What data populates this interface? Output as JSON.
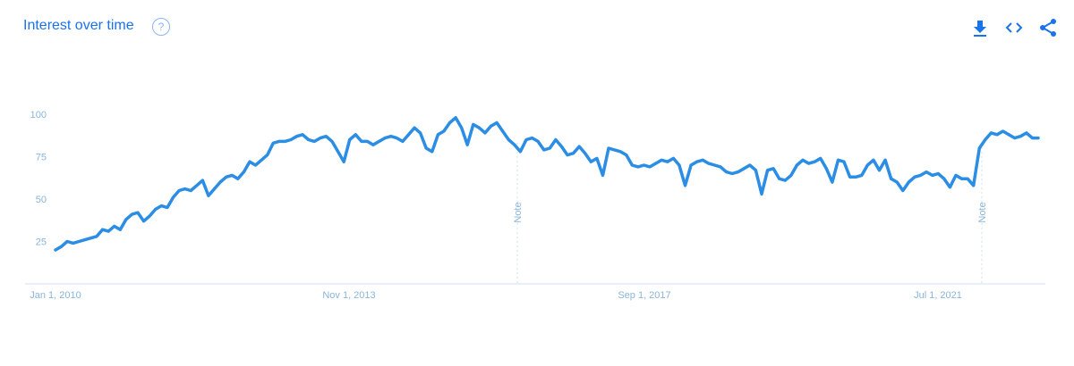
{
  "header": {
    "title": "Interest over time",
    "help_icon": "help-circle-icon",
    "help_glyph": "?",
    "actions": [
      {
        "name": "download-icon",
        "label": "Download"
      },
      {
        "name": "embed-icon",
        "label": "Embed"
      },
      {
        "name": "share-icon",
        "label": "Share"
      }
    ]
  },
  "colors": {
    "line": "#2b8de3",
    "accent": "#1a73e8",
    "axis": "#8ab4d8"
  },
  "chart_data": {
    "type": "line",
    "title": "Interest over time",
    "xlabel": "",
    "ylabel": "",
    "ylim": [
      0,
      100
    ],
    "yticks": [
      25,
      50,
      75,
      100
    ],
    "yticklabels": [
      "25",
      "50",
      "75",
      "100"
    ],
    "xticks": [
      "Jan 1, 2010",
      "Nov 1, 2013",
      "Sep 1, 2017",
      "Jul 1, 2021"
    ],
    "grid": false,
    "annotations": [
      {
        "label": "Note",
        "x": 2015
      },
      {
        "label": "Note",
        "x": 2022
      }
    ],
    "series": [
      {
        "name": "",
        "values": [
          20,
          22,
          25,
          24,
          25,
          26,
          27,
          28,
          32,
          31,
          34,
          32,
          38,
          41,
          42,
          37,
          40,
          44,
          46,
          45,
          51,
          55,
          56,
          55,
          58,
          61,
          52,
          56,
          60,
          63,
          64,
          62,
          66,
          72,
          70,
          73,
          76,
          83,
          84,
          84,
          85,
          87,
          88,
          85,
          84,
          86,
          87,
          84,
          78,
          72,
          85,
          88,
          84,
          84,
          82,
          84,
          86,
          87,
          86,
          84,
          88,
          92,
          89,
          80,
          78,
          88,
          90,
          95,
          98,
          92,
          82,
          94,
          92,
          89,
          93,
          95,
          90,
          85,
          82,
          78,
          85,
          86,
          84,
          79,
          80,
          85,
          81,
          76,
          77,
          81,
          77,
          72,
          74,
          64,
          80,
          79,
          78,
          76,
          70,
          69,
          70,
          69,
          71,
          73,
          72,
          74,
          70,
          58,
          70,
          72,
          73,
          71,
          70,
          69,
          66,
          65,
          66,
          68,
          70,
          67,
          53,
          67,
          68,
          62,
          61,
          64,
          70,
          73,
          71,
          72,
          74,
          68,
          60,
          73,
          72,
          63,
          63,
          64,
          70,
          73,
          67,
          73,
          62,
          60,
          55,
          60,
          63,
          64,
          66,
          64,
          65,
          62,
          57,
          64,
          62,
          62,
          58,
          80,
          85,
          89,
          88,
          90,
          88,
          86,
          87,
          89,
          86,
          86
        ]
      }
    ]
  }
}
